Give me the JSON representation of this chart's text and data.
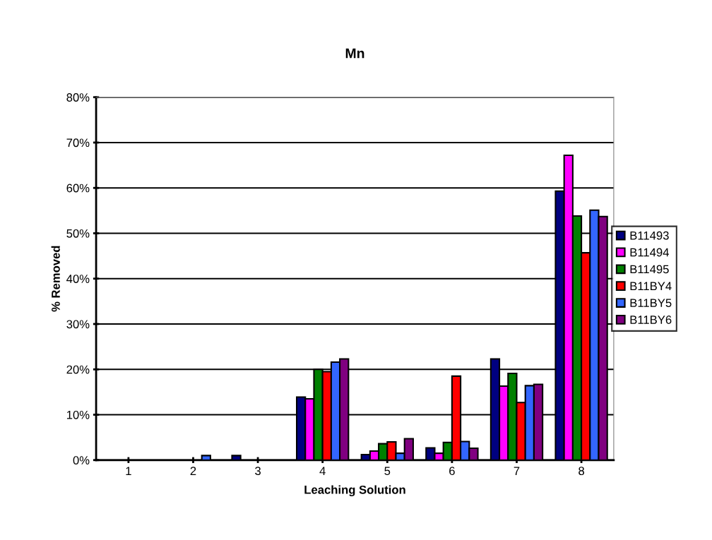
{
  "chart_data": {
    "type": "bar",
    "title": "Mn",
    "xlabel": "Leaching Solution",
    "ylabel": "% Removed",
    "categories": [
      "1",
      "2",
      "3",
      "4",
      "5",
      "6",
      "7",
      "8"
    ],
    "series": [
      {
        "name": "B11493",
        "color": "#000080",
        "values": [
          null,
          null,
          1.0,
          13.9,
          1.2,
          2.7,
          22.3,
          59.3
        ]
      },
      {
        "name": "B11494",
        "color": "#ff00ff",
        "values": [
          null,
          null,
          null,
          13.5,
          2.0,
          1.5,
          16.3,
          67.2
        ]
      },
      {
        "name": "B11495",
        "color": "#008000",
        "values": [
          null,
          null,
          null,
          20.0,
          3.6,
          3.9,
          19.1,
          53.8
        ]
      },
      {
        "name": "B11BY4",
        "color": "#ff0000",
        "values": [
          null,
          null,
          null,
          19.5,
          4.0,
          18.5,
          12.7,
          45.7
        ]
      },
      {
        "name": "B11BY5",
        "color": "#3366ff",
        "values": [
          null,
          1.0,
          null,
          21.6,
          1.5,
          4.1,
          16.4,
          55.1
        ]
      },
      {
        "name": "B11BY6",
        "color": "#800080",
        "values": [
          null,
          null,
          null,
          22.3,
          4.7,
          2.6,
          16.7,
          53.7
        ]
      }
    ],
    "ylim": [
      0,
      80
    ],
    "yticks": [
      {
        "value": 0,
        "label": "0%"
      },
      {
        "value": 10,
        "label": "10%"
      },
      {
        "value": 20,
        "label": "20%"
      },
      {
        "value": 30,
        "label": "30%"
      },
      {
        "value": 40,
        "label": "40%"
      },
      {
        "value": 50,
        "label": "50%"
      },
      {
        "value": 60,
        "label": "60%"
      },
      {
        "value": 70,
        "label": "70%"
      },
      {
        "value": 80,
        "label": "80%"
      }
    ],
    "grid": "y",
    "legend": "right"
  }
}
